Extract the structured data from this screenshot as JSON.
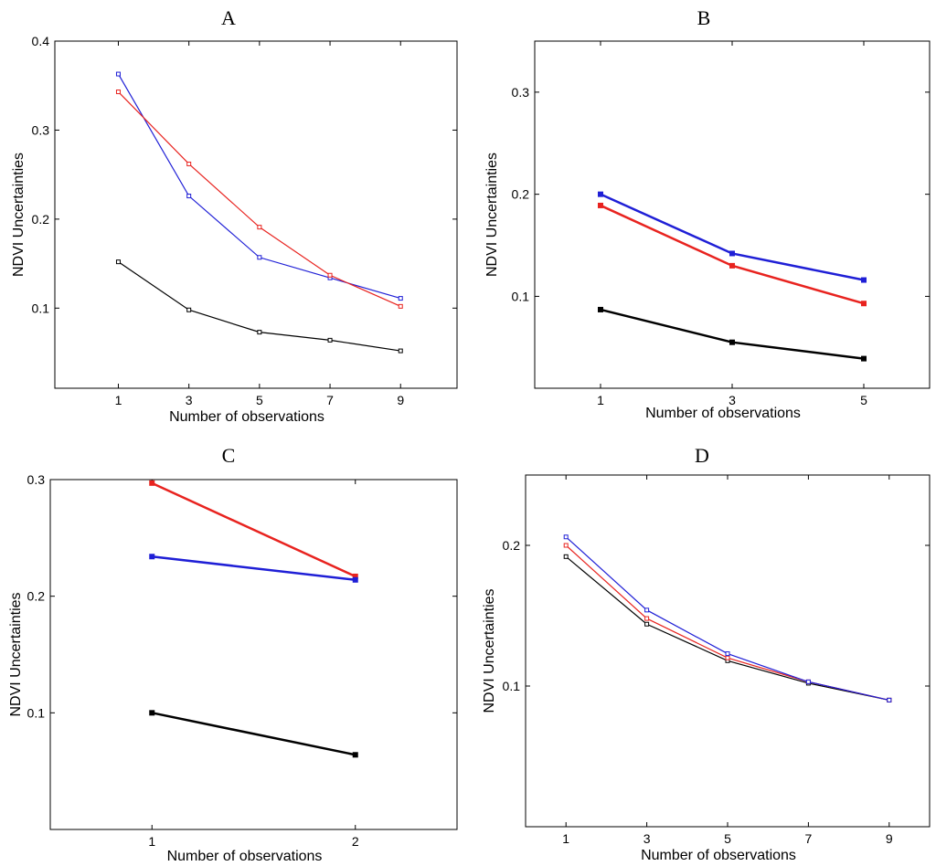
{
  "chart_data": [
    {
      "type": "line",
      "panel": "A",
      "title": "A",
      "xlabel": "Number of observations",
      "ylabel": "NDVI Uncertainties",
      "x": [
        1,
        3,
        5,
        7,
        9
      ],
      "xlim": [
        -0.8,
        10.6
      ],
      "ylim": [
        0.01,
        0.4
      ],
      "xticks": [
        1,
        3,
        5,
        7,
        9
      ],
      "yticks": [
        0.1,
        0.2,
        0.3,
        0.4
      ],
      "ytick_labels": [
        "0.1",
        "0.2",
        "0.3",
        "0.4"
      ],
      "series": [
        {
          "name": "blue",
          "color": "#1f1fd6",
          "values": [
            0.363,
            0.226,
            0.157,
            0.134,
            0.111
          ]
        },
        {
          "name": "red",
          "color": "#e8231f",
          "values": [
            0.343,
            0.262,
            0.191,
            0.137,
            0.102
          ]
        },
        {
          "name": "black",
          "color": "#000000",
          "values": [
            0.152,
            0.098,
            0.073,
            0.064,
            0.052
          ]
        }
      ]
    },
    {
      "type": "line",
      "panel": "B",
      "title": "B",
      "xlabel": "Number of observations",
      "ylabel": "NDVI Uncertainties",
      "x": [
        1,
        3,
        5
      ],
      "xlim": [
        0.0,
        6.0
      ],
      "ylim": [
        0.01,
        0.35
      ],
      "xticks": [
        1,
        3,
        5
      ],
      "yticks": [
        0.1,
        0.2,
        0.3
      ],
      "ytick_labels": [
        "0.1",
        "0.2",
        "0.3"
      ],
      "series": [
        {
          "name": "blue",
          "color": "#1f1fd6",
          "values": [
            0.2,
            0.142,
            0.116
          ]
        },
        {
          "name": "red",
          "color": "#e8231f",
          "values": [
            0.189,
            0.13,
            0.093
          ]
        },
        {
          "name": "black",
          "color": "#000000",
          "values": [
            0.087,
            0.055,
            0.039
          ]
        }
      ]
    },
    {
      "type": "line",
      "panel": "C",
      "title": "C",
      "xlabel": "Number of observations",
      "ylabel": "NDVI Uncertainties",
      "x": [
        1,
        2
      ],
      "xlim": [
        0.5,
        2.5
      ],
      "ylim": [
        0.0,
        0.3
      ],
      "xticks": [
        1,
        2
      ],
      "yticks": [
        0.1,
        0.2,
        0.3
      ],
      "ytick_labels": [
        "0.1",
        "0.2",
        "0.3"
      ],
      "series": [
        {
          "name": "red",
          "color": "#e8231f",
          "values": [
            0.297,
            0.217
          ]
        },
        {
          "name": "blue",
          "color": "#1f1fd6",
          "values": [
            0.234,
            0.214
          ]
        },
        {
          "name": "black",
          "color": "#000000",
          "values": [
            0.1,
            0.064
          ]
        }
      ]
    },
    {
      "type": "line",
      "panel": "D",
      "title": "D",
      "xlabel": "Number of observations",
      "ylabel": "NDVI Uncertainties",
      "x": [
        1,
        3,
        5,
        7,
        9
      ],
      "xlim": [
        0.0,
        10.0
      ],
      "ylim": [
        0.0,
        0.25
      ],
      "xticks": [
        1,
        3,
        5,
        7,
        9
      ],
      "yticks": [
        0.1,
        0.2
      ],
      "ytick_labels": [
        "0.1",
        "0.2"
      ],
      "series": [
        {
          "name": "black",
          "color": "#000000",
          "values": [
            0.192,
            0.144,
            0.118,
            0.102,
            0.09
          ]
        },
        {
          "name": "red",
          "color": "#e8231f",
          "values": [
            0.2,
            0.148,
            0.12,
            0.103,
            0.09
          ]
        },
        {
          "name": "blue",
          "color": "#1f1fd6",
          "values": [
            0.206,
            0.154,
            0.123,
            0.103,
            0.09
          ]
        }
      ]
    }
  ]
}
